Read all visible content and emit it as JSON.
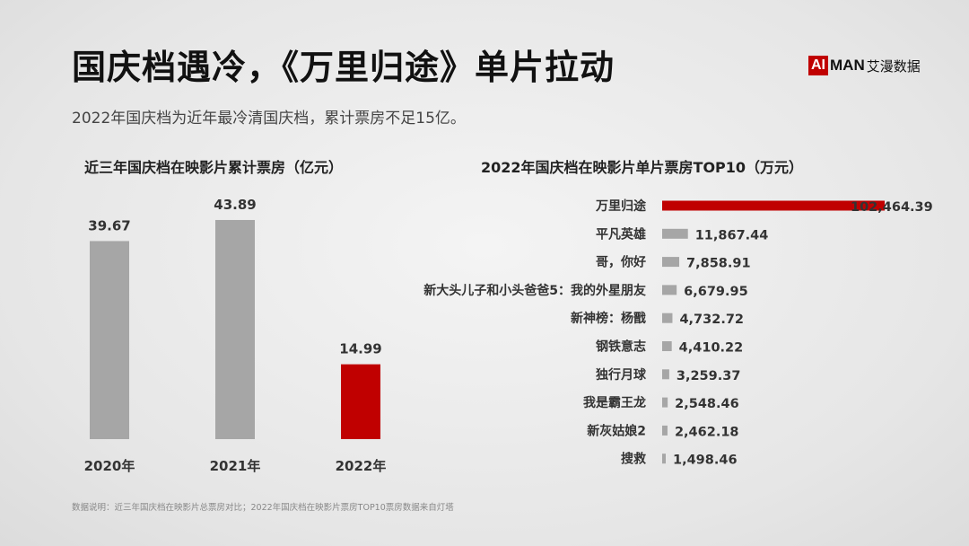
{
  "header": {
    "title": "国庆档遇冷，《万里归途》单片拉动",
    "subtitle": "2022年国庆档为近年最冷清国庆档，累计票房不足15亿。",
    "logo": {
      "ai": "AI",
      "man": "MAN",
      "cn": "艾漫数据"
    }
  },
  "colors": {
    "highlight": "#c00000",
    "bar": "#a6a6a6"
  },
  "chart_data": [
    {
      "type": "bar",
      "title": "近三年国庆档在映影片累计票房（亿元）",
      "categories": [
        "2020年",
        "2021年",
        "2022年"
      ],
      "values": [
        39.67,
        43.89,
        14.99
      ],
      "value_labels": [
        "39.67",
        "43.89",
        "14.99"
      ],
      "highlight_index": 2,
      "ylim": [
        0,
        50
      ]
    },
    {
      "type": "bar",
      "orientation": "horizontal",
      "title": "2022年国庆档在映影片单片票房TOP10（万元）",
      "categories": [
        "万里归途",
        "平凡英雄",
        "哥，你好",
        "新大头儿子和小头爸爸5：我的外星朋友",
        "新神榜：杨戬",
        "钢铁意志",
        "独行月球",
        "我是霸王龙",
        "新灰姑娘2",
        "搜救"
      ],
      "values": [
        102464.39,
        11867.44,
        7858.91,
        6679.95,
        4732.72,
        4410.22,
        3259.37,
        2548.46,
        2462.18,
        1498.46
      ],
      "value_labels": [
        "102,464.39",
        "11,867.44",
        "7,858.91",
        "6,679.95",
        "4,732.72",
        "4,410.22",
        "3,259.37",
        "2,548.46",
        "2,462.18",
        "1,498.46"
      ],
      "highlight_index": 0
    }
  ],
  "footnote": "数据说明：近三年国庆档在映影片总票房对比；2022年国庆档在映影片票房TOP10票房数据来自灯塔"
}
